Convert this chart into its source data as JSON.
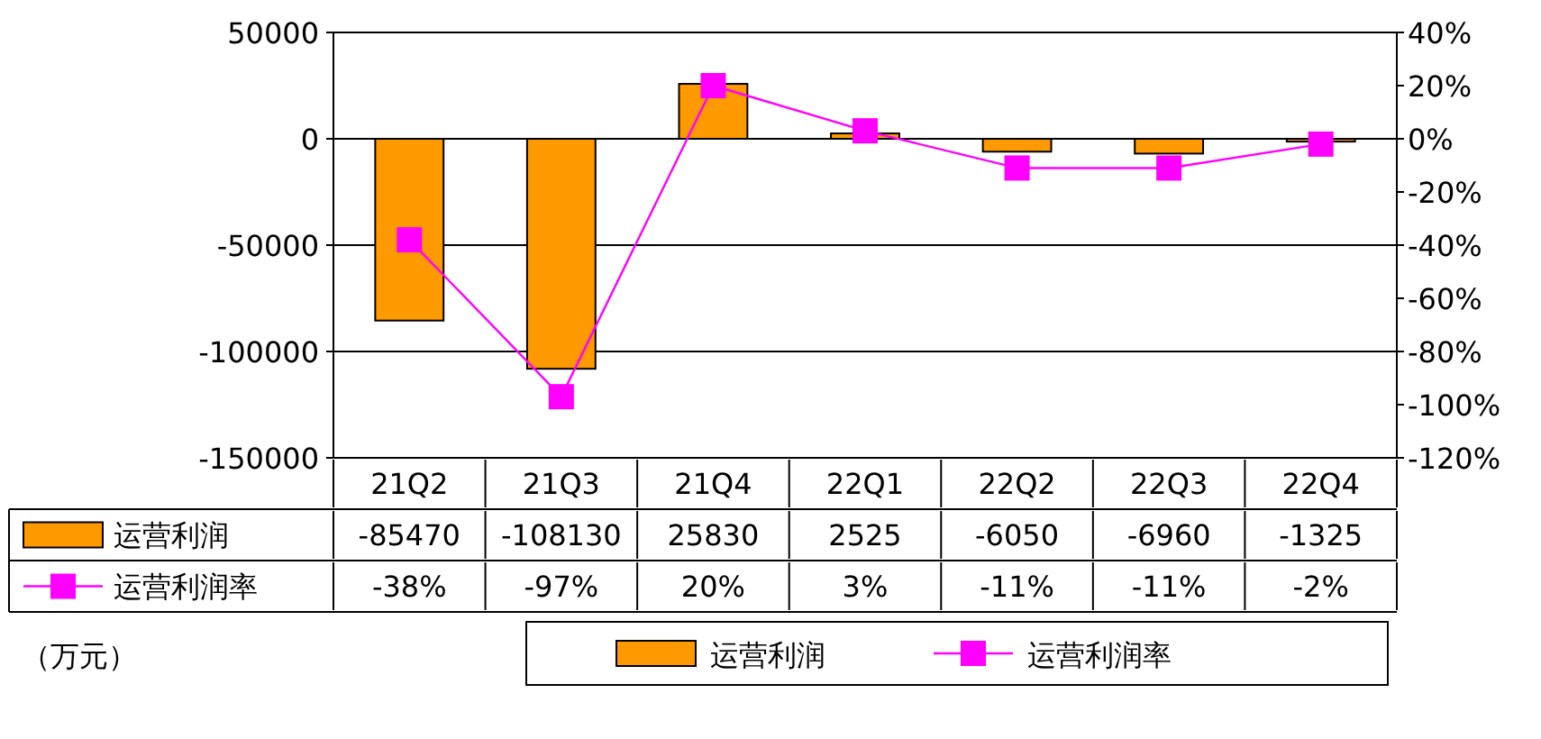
{
  "chart_data": {
    "type": "bar",
    "categories": [
      "21Q2",
      "21Q3",
      "21Q4",
      "22Q1",
      "22Q2",
      "22Q3",
      "22Q4"
    ],
    "series": [
      {
        "name": "运营利润",
        "color": "#ff9900",
        "values": [
          -85470,
          -108130,
          25830,
          2525,
          -6050,
          -6960,
          -1325
        ],
        "value_labels": [
          "-85470",
          "-108130",
          "25830",
          "2525",
          "-6050",
          "-6960",
          "-1325"
        ]
      },
      {
        "name": "运营利润率",
        "type": "line",
        "axis": "y2",
        "color": "#ff00ff",
        "values": [
          -38,
          -97,
          20,
          3,
          -11,
          -11,
          -2
        ],
        "value_labels": [
          "-38%",
          "-97%",
          "20%",
          "3%",
          "-11%",
          "-11%",
          "-2%"
        ]
      }
    ],
    "ylim": [
      -150000,
      50000
    ],
    "yticks": [
      -150000,
      -100000,
      -50000,
      0,
      50000
    ],
    "y2lim": [
      -120,
      40
    ],
    "y2ticks": [
      {
        "value": -120,
        "label": "-120%"
      },
      {
        "value": -100,
        "label": "-100%"
      },
      {
        "value": -80,
        "label": "-80%"
      },
      {
        "value": -60,
        "label": "-60%"
      },
      {
        "value": -40,
        "label": "-40%"
      },
      {
        "value": -20,
        "label": "-20%"
      },
      {
        "value": 0,
        "label": "0%"
      },
      {
        "value": 20,
        "label": "20%"
      },
      {
        "value": 40,
        "label": "40%"
      }
    ],
    "grid": "y",
    "legend": "bottom",
    "marker": "square",
    "annotations": [
      "（万元）"
    ]
  }
}
